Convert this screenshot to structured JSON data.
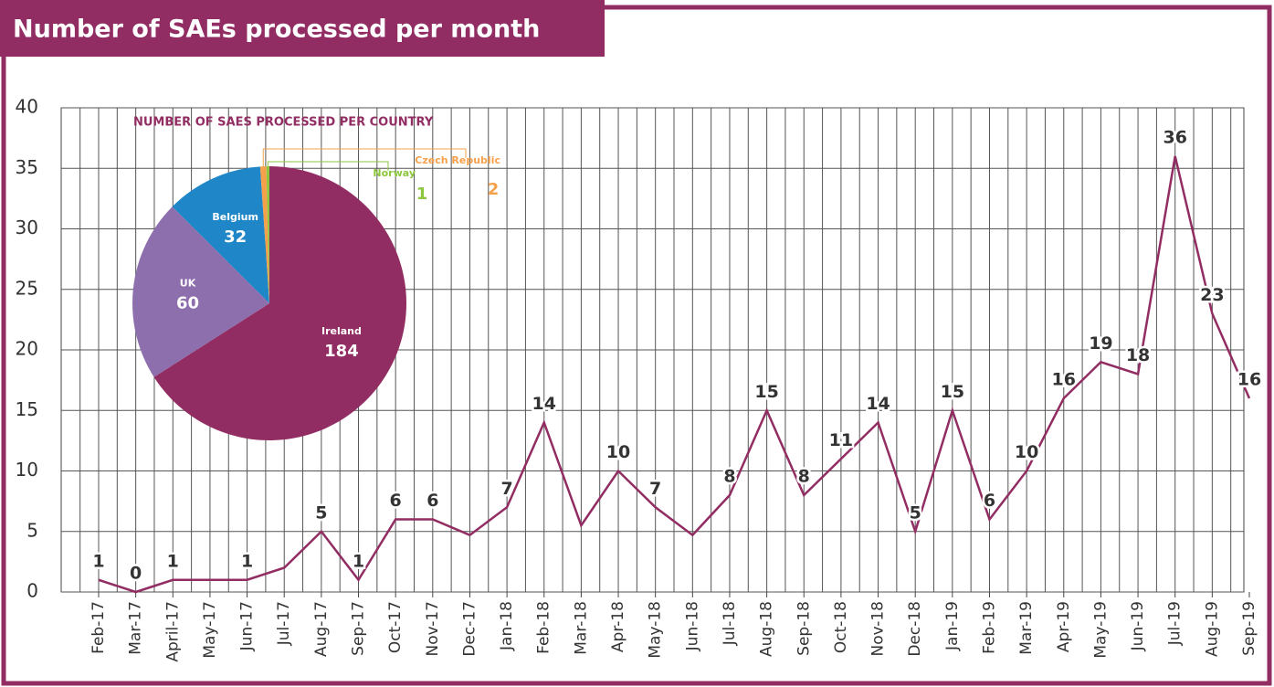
{
  "chart_data": [
    {
      "type": "line",
      "title": "Number of SAEs processed per month",
      "categories": [
        "Feb-17",
        "Mar-17",
        "April-17",
        "May-17",
        "Jun-17",
        "Jul-17",
        "Aug-17",
        "Sep-17",
        "Oct-17",
        "Nov-17",
        "Dec-17",
        "Jan-18",
        "Feb-18",
        "Mar-18",
        "Apr-18",
        "May-18",
        "Jun-18",
        "Jul-18",
        "Aug-18",
        "Sep-18",
        "Oct-18",
        "Nov-18",
        "Dec-18",
        "Jan-19",
        "Feb-19",
        "Mar-19",
        "Apr-19",
        "May-19",
        "Jun-19",
        "Jul-19",
        "Aug-19",
        "Sep-19"
      ],
      "series": [
        {
          "name": "SAEs",
          "color": "#922d63",
          "values": [
            1,
            0,
            1,
            1,
            1,
            2,
            5,
            1,
            6,
            6,
            4.7,
            7,
            14,
            5.5,
            10,
            7,
            4.7,
            8,
            15,
            8,
            11,
            14,
            5,
            15,
            6,
            10,
            16,
            19,
            18,
            36,
            23,
            16
          ],
          "value_labels": [
            "1",
            "0",
            "1",
            null,
            "1",
            null,
            "5",
            "1",
            "6",
            "6",
            null,
            "7",
            "14",
            null,
            "10",
            "7",
            null,
            "8",
            "15",
            "8",
            "11",
            "14",
            "5",
            "15",
            "6",
            "10",
            "16",
            "19",
            "18",
            "36",
            "23",
            "16"
          ]
        }
      ],
      "ylim": [
        0,
        40
      ],
      "yticks": [
        0,
        5,
        10,
        15,
        20,
        25,
        30,
        35,
        40
      ],
      "grid": true
    },
    {
      "type": "pie",
      "title": "NUMBER OF SAES PROCESSED PER COUNTRY",
      "categories": [
        "Ireland",
        "UK",
        "Belgium",
        "Czech Republic",
        "Norway"
      ],
      "values": [
        184,
        60,
        32,
        2,
        1
      ],
      "colors": [
        "#922d63",
        "#8e6fae",
        "#1f86c7",
        "#f5a14b",
        "#8dc63f"
      ]
    }
  ]
}
